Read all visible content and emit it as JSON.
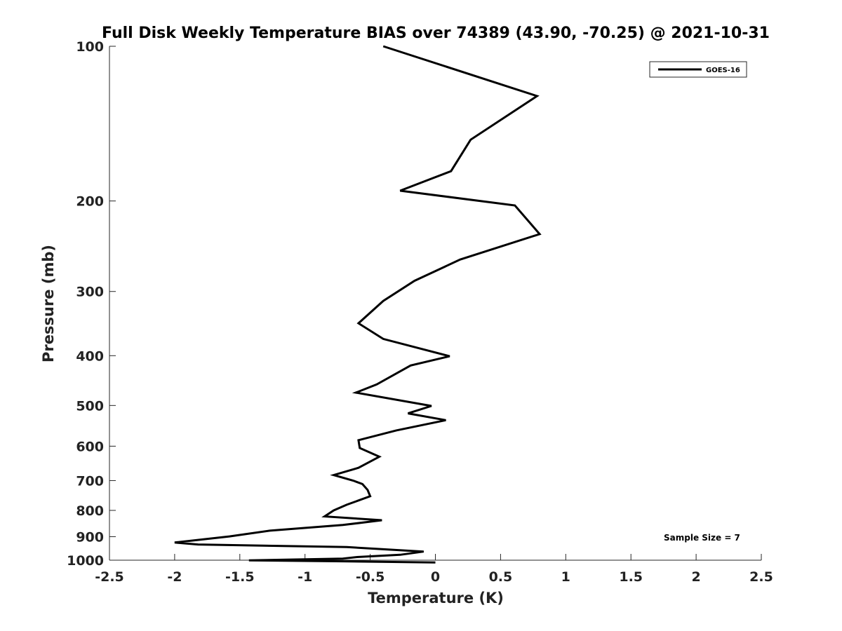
{
  "chart_data": {
    "type": "line",
    "title": "Full Disk Weekly Temperature BIAS over 74389 (43.90, -70.25) @ 2021-10-31",
    "xlabel": "Temperature (K)",
    "ylabel": "Pressure (mb)",
    "xlim": [
      -2.5,
      2.5
    ],
    "ylim": [
      1000,
      100
    ],
    "y_scale": "log",
    "y_inverted": true,
    "x_ticks": [
      "-2.5",
      "-2",
      "-1.5",
      "-1",
      "-0.5",
      "0",
      "0.5",
      "1",
      "1.5",
      "2",
      "2.5"
    ],
    "y_ticks": [
      "100",
      "200",
      "300",
      "400",
      "500",
      "600",
      "700",
      "800",
      "900",
      "1000"
    ],
    "grid": false,
    "legend_position": "top-right",
    "annotation": "Sample Size = 7",
    "series": [
      {
        "name": "GOES-16",
        "color": "#000000",
        "points": [
          [
            -0.4,
            100
          ],
          [
            0.78,
            125
          ],
          [
            0.27,
            152
          ],
          [
            0.12,
            175
          ],
          [
            -0.27,
            191
          ],
          [
            0.61,
            204
          ],
          [
            0.8,
            232
          ],
          [
            0.19,
            260
          ],
          [
            -0.16,
            286
          ],
          [
            -0.4,
            313
          ],
          [
            -0.59,
            346
          ],
          [
            -0.4,
            371
          ],
          [
            0.11,
            401
          ],
          [
            -0.19,
            418
          ],
          [
            -0.45,
            455
          ],
          [
            -0.61,
            472
          ],
          [
            -0.03,
            501
          ],
          [
            -0.21,
            518
          ],
          [
            0.08,
            534
          ],
          [
            -0.3,
            559
          ],
          [
            -0.59,
            584
          ],
          [
            -0.58,
            605
          ],
          [
            -0.43,
            629
          ],
          [
            -0.59,
            661
          ],
          [
            -0.78,
            683
          ],
          [
            -0.63,
            700
          ],
          [
            -0.56,
            711
          ],
          [
            -0.52,
            730
          ],
          [
            -0.5,
            751
          ],
          [
            -0.68,
            780
          ],
          [
            -0.78,
            800
          ],
          [
            -0.85,
            822
          ],
          [
            -0.41,
            836
          ],
          [
            -0.71,
            854
          ],
          [
            -1.27,
            876
          ],
          [
            -1.58,
            899
          ],
          [
            -2.0,
            924
          ],
          [
            -1.82,
            932
          ],
          [
            -0.68,
            943
          ],
          [
            -0.09,
            962
          ],
          [
            -0.27,
            976
          ],
          [
            -0.6,
            986
          ],
          [
            -0.71,
            993
          ],
          [
            -1.43,
            1001
          ],
          [
            -0.7,
            1005
          ],
          [
            0.0,
            1010
          ]
        ]
      }
    ]
  }
}
